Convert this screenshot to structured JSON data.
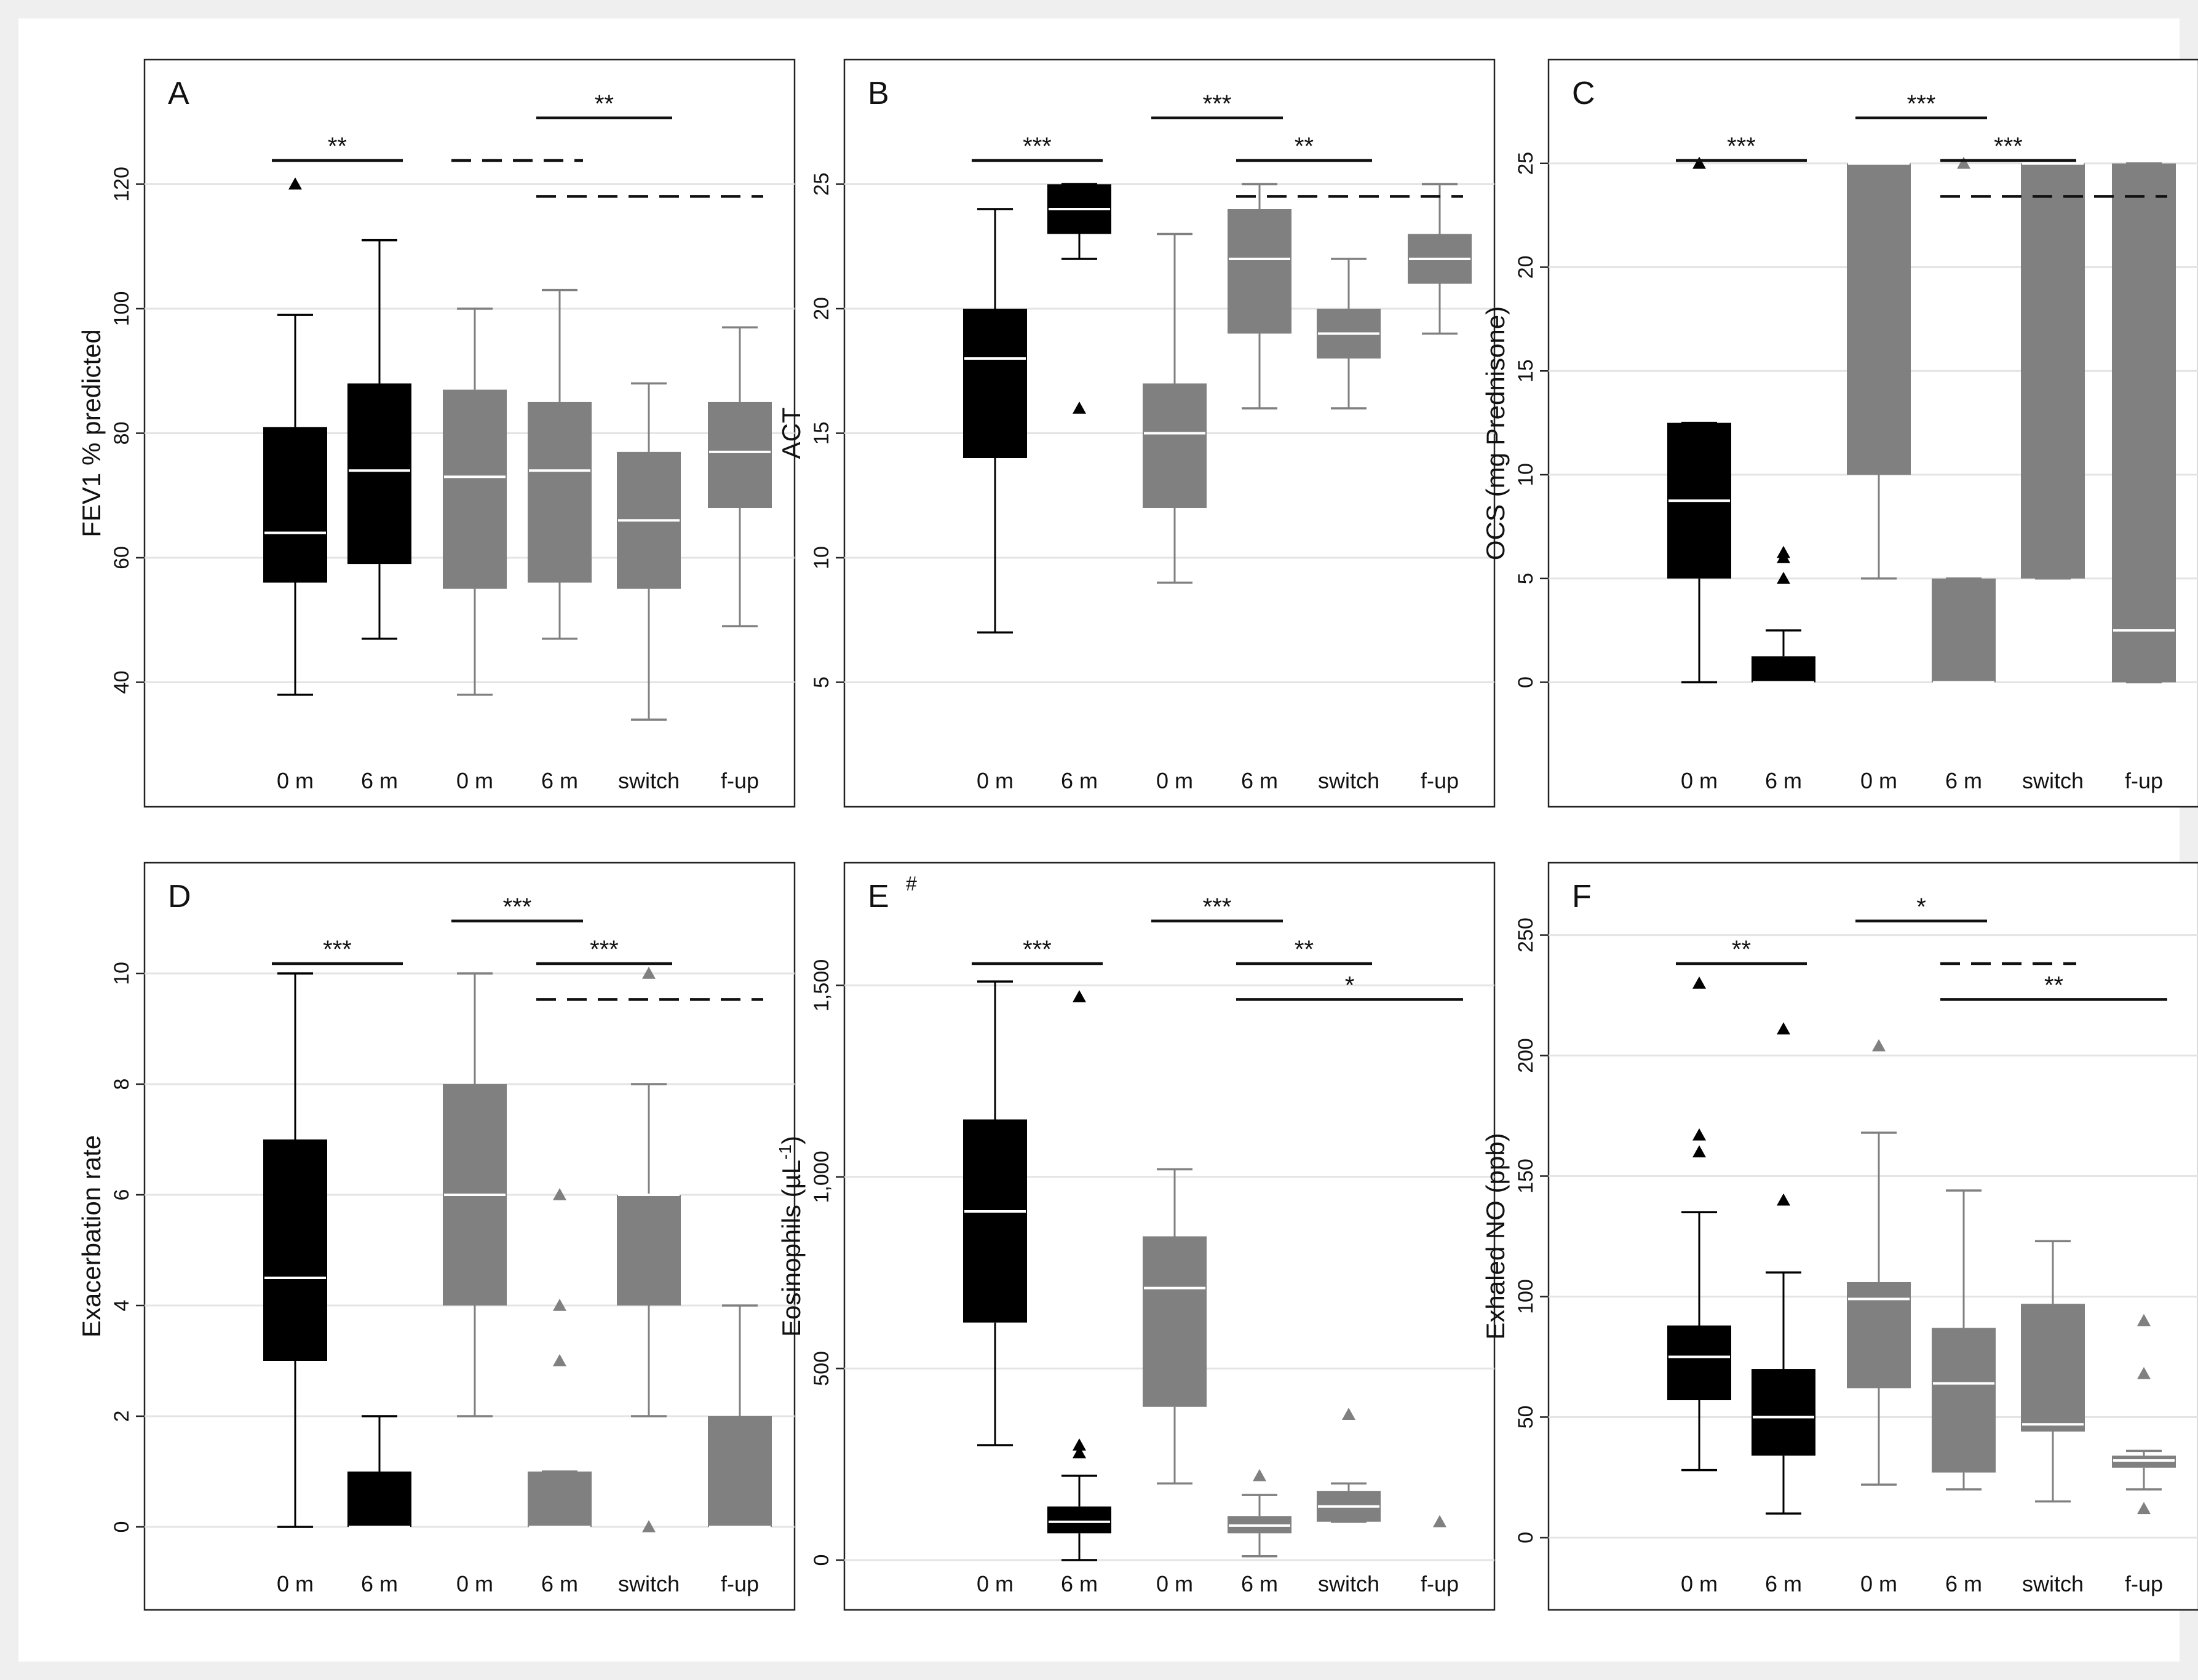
{
  "figure": {
    "background": "#efefef",
    "panel_background": "#ffffff"
  },
  "colors": {
    "black_group": "#000000",
    "gray_group": "#808080",
    "median_on_black": "#ffffff",
    "median_on_gray": "#ffffff"
  },
  "chart_data": [
    {
      "type": "box",
      "panel": "A",
      "ylabel": "FEV1 % predicted",
      "ylim": [
        20,
        140
      ],
      "yticks": [
        40,
        60,
        80,
        100,
        120
      ],
      "yticklabels": [
        "40",
        "60",
        "80",
        "100",
        "120"
      ],
      "categories": [
        "0 m",
        "6 m",
        "0 m",
        "6 m",
        "switch",
        "f-up"
      ],
      "groups": [
        "black",
        "black",
        "gray",
        "gray",
        "gray",
        "gray"
      ],
      "boxes": [
        {
          "whisker_low": 38,
          "q1": 56,
          "median": 64,
          "q3": 81,
          "whisker_high": 99,
          "outliers": [
            120
          ]
        },
        {
          "whisker_low": 47,
          "q1": 59,
          "median": 74,
          "q3": 88,
          "whisker_high": 111,
          "outliers": []
        },
        {
          "whisker_low": 38,
          "q1": 55,
          "median": 73,
          "q3": 87,
          "whisker_high": 100,
          "outliers": []
        },
        {
          "whisker_low": 47,
          "q1": 56,
          "median": 74,
          "q3": 85,
          "whisker_high": 103,
          "outliers": []
        },
        {
          "whisker_low": 34,
          "q1": 55,
          "median": 66,
          "q3": 77,
          "whisker_high": 88,
          "outliers": []
        },
        {
          "whisker_low": 49,
          "q1": 68,
          "median": 77,
          "q3": 85,
          "whisker_high": 97,
          "outliers": []
        }
      ],
      "significance": [
        {
          "label": "**",
          "from": 0,
          "to": 1,
          "style": "solid",
          "level": 1
        },
        {
          "label": "**",
          "from": 3,
          "to": 4,
          "style": "solid",
          "level": 0
        },
        {
          "label": "",
          "from": 2,
          "to": 3,
          "style": "dashed",
          "level": 1
        },
        {
          "label": "",
          "from": 3,
          "to": 5,
          "style": "dashed",
          "level": 2
        }
      ]
    },
    {
      "type": "box",
      "panel": "B",
      "ylabel": "ACT",
      "ylim": [
        0,
        30
      ],
      "yticks": [
        5,
        10,
        15,
        20,
        25
      ],
      "yticklabels": [
        "5",
        "10",
        "15",
        "20",
        "25"
      ],
      "categories": [
        "0 m",
        "6 m",
        "0 m",
        "6 m",
        "switch",
        "f-up"
      ],
      "groups": [
        "black",
        "black",
        "gray",
        "gray",
        "gray",
        "gray"
      ],
      "boxes": [
        {
          "whisker_low": 7,
          "q1": 14,
          "median": 18,
          "q3": 20,
          "whisker_high": 24,
          "outliers": []
        },
        {
          "whisker_low": 22,
          "q1": 23,
          "median": 24,
          "q3": 25,
          "whisker_high": 25,
          "outliers": [
            16
          ]
        },
        {
          "whisker_low": 9,
          "q1": 12,
          "median": 15,
          "q3": 17,
          "whisker_high": 23,
          "outliers": []
        },
        {
          "whisker_low": 16,
          "q1": 19,
          "median": 22,
          "q3": 24,
          "whisker_high": 25,
          "outliers": []
        },
        {
          "whisker_low": 16,
          "q1": 18,
          "median": 19,
          "q3": 20,
          "whisker_high": 22,
          "outliers": []
        },
        {
          "whisker_low": 19,
          "q1": 21,
          "median": 22,
          "q3": 23,
          "whisker_high": 25,
          "outliers": []
        }
      ],
      "significance": [
        {
          "label": "***",
          "from": 0,
          "to": 1,
          "style": "solid",
          "level": 1
        },
        {
          "label": "***",
          "from": 2,
          "to": 3,
          "style": "solid",
          "level": 0
        },
        {
          "label": "**",
          "from": 3,
          "to": 4,
          "style": "solid",
          "level": 1
        },
        {
          "label": "",
          "from": 3,
          "to": 5,
          "style": "dashed",
          "level": 2
        }
      ]
    },
    {
      "type": "box",
      "panel": "C",
      "ylabel": "OCS (mg Prednisone)",
      "ylim": [
        -6,
        30
      ],
      "yticks": [
        0,
        5,
        10,
        15,
        20,
        25
      ],
      "yticklabels": [
        "0",
        "5",
        "10",
        "15",
        "20",
        "25"
      ],
      "categories": [
        "0 m",
        "6 m",
        "0 m",
        "6 m",
        "switch",
        "f-up"
      ],
      "groups": [
        "black",
        "black",
        "gray",
        "gray",
        "gray",
        "gray"
      ],
      "boxes": [
        {
          "whisker_low": 0,
          "q1": 5,
          "median": 8.75,
          "q3": 12.5,
          "whisker_high": 12.5,
          "outliers": [
            25
          ]
        },
        {
          "whisker_low": 0,
          "q1": 0,
          "median": 0,
          "q3": 1.25,
          "whisker_high": 2.5,
          "outliers": [
            5,
            6,
            6.25
          ]
        },
        {
          "whisker_low": 5,
          "q1": 10,
          "median": 25,
          "q3": 25,
          "whisker_high": 25,
          "outliers": []
        },
        {
          "whisker_low": 0,
          "q1": 0,
          "median": 0,
          "q3": 5,
          "whisker_high": 5,
          "outliers": [
            25
          ]
        },
        {
          "whisker_low": 5,
          "q1": 5,
          "median": 25,
          "q3": 25,
          "whisker_high": 25,
          "outliers": []
        },
        {
          "whisker_low": 0,
          "q1": 0,
          "median": 2.5,
          "q3": 25,
          "whisker_high": 25,
          "outliers": []
        }
      ],
      "significance": [
        {
          "label": "***",
          "from": 0,
          "to": 1,
          "style": "solid",
          "level": 1
        },
        {
          "label": "***",
          "from": 2,
          "to": 3,
          "style": "solid",
          "level": 0
        },
        {
          "label": "***",
          "from": 3,
          "to": 4,
          "style": "solid",
          "level": 1
        },
        {
          "label": "",
          "from": 3,
          "to": 5,
          "style": "dashed",
          "level": 2
        }
      ]
    },
    {
      "type": "box",
      "panel": "D",
      "ylabel": "Exacerbation rate",
      "ylim": [
        -1.5,
        12
      ],
      "yticks": [
        0,
        2,
        4,
        6,
        8,
        10
      ],
      "yticklabels": [
        "0",
        "2",
        "4",
        "6",
        "8",
        "10"
      ],
      "categories": [
        "0 m",
        "6 m",
        "0 m",
        "6 m",
        "switch",
        "f-up"
      ],
      "groups": [
        "black",
        "black",
        "gray",
        "gray",
        "gray",
        "gray"
      ],
      "boxes": [
        {
          "whisker_low": 0,
          "q1": 3,
          "median": 4.5,
          "q3": 7,
          "whisker_high": 10,
          "outliers": []
        },
        {
          "whisker_low": 0,
          "q1": 0,
          "median": 0,
          "q3": 1,
          "whisker_high": 2,
          "outliers": []
        },
        {
          "whisker_low": 2,
          "q1": 4,
          "median": 6,
          "q3": 8,
          "whisker_high": 10,
          "outliers": []
        },
        {
          "whisker_low": 0,
          "q1": 0,
          "median": 0,
          "q3": 1,
          "whisker_high": 1,
          "outliers": [
            3,
            4,
            6
          ]
        },
        {
          "whisker_low": 2,
          "q1": 4,
          "median": 6,
          "q3": 6,
          "whisker_high": 8,
          "outliers": [
            0,
            10
          ]
        },
        {
          "whisker_low": 0,
          "q1": 0,
          "median": 0,
          "q3": 2,
          "whisker_high": 4,
          "outliers": []
        }
      ],
      "significance": [
        {
          "label": "***",
          "from": 0,
          "to": 1,
          "style": "solid",
          "level": 1
        },
        {
          "label": "***",
          "from": 2,
          "to": 3,
          "style": "solid",
          "level": 0
        },
        {
          "label": "***",
          "from": 3,
          "to": 4,
          "style": "solid",
          "level": 1
        },
        {
          "label": "",
          "from": 3,
          "to": 5,
          "style": "dashed",
          "level": 2
        }
      ]
    },
    {
      "type": "box",
      "panel": "E",
      "note": "#",
      "ylabel": "Eosinophils (µL",
      "ylabel_sup": "-1",
      "ylabel_close": ")",
      "ylim": [
        -130,
        1820
      ],
      "yticks": [
        0,
        500,
        1000,
        1500
      ],
      "yticklabels": [
        "0",
        "500",
        "1,000",
        "1,500"
      ],
      "categories": [
        "0 m",
        "6 m",
        "0 m",
        "6 m",
        "switch",
        "f-up"
      ],
      "groups": [
        "black",
        "black",
        "gray",
        "gray",
        "gray",
        "gray"
      ],
      "boxes": [
        {
          "whisker_low": 300,
          "q1": 620,
          "median": 910,
          "q3": 1150,
          "whisker_high": 1510,
          "outliers": []
        },
        {
          "whisker_low": 0,
          "q1": 70,
          "median": 100,
          "q3": 140,
          "whisker_high": 220,
          "outliers": [
            280,
            300,
            1470
          ]
        },
        {
          "whisker_low": 200,
          "q1": 400,
          "median": 710,
          "q3": 845,
          "whisker_high": 1020,
          "outliers": []
        },
        {
          "whisker_low": 10,
          "q1": 70,
          "median": 90,
          "q3": 115,
          "whisker_high": 170,
          "outliers": [
            220
          ]
        },
        {
          "whisker_low": 100,
          "q1": 100,
          "median": 140,
          "q3": 180,
          "whisker_high": 200,
          "outliers": [
            380
          ]
        },
        {
          "whisker_low": null,
          "q1": null,
          "median": null,
          "q3": null,
          "whisker_high": null,
          "outliers": [
            100
          ]
        }
      ],
      "significance": [
        {
          "label": "***",
          "from": 0,
          "to": 1,
          "style": "solid",
          "level": 1
        },
        {
          "label": "***",
          "from": 2,
          "to": 3,
          "style": "solid",
          "level": 0
        },
        {
          "label": "**",
          "from": 3,
          "to": 4,
          "style": "solid",
          "level": 1
        },
        {
          "label": "*",
          "from": 3,
          "to": 5,
          "style": "solid",
          "level": 2
        }
      ]
    },
    {
      "type": "box",
      "panel": "F",
      "ylabel": "Exhaled NO (ppb)",
      "ylim": [
        -30,
        280
      ],
      "yticks": [
        0,
        50,
        100,
        150,
        200,
        250
      ],
      "yticklabels": [
        "0",
        "50",
        "100",
        "150",
        "200",
        "250"
      ],
      "categories": [
        "0 m",
        "6 m",
        "0 m",
        "6 m",
        "switch",
        "f-up"
      ],
      "groups": [
        "black",
        "black",
        "gray",
        "gray",
        "gray",
        "gray"
      ],
      "boxes": [
        {
          "whisker_low": 28,
          "q1": 57,
          "median": 75,
          "q3": 88,
          "whisker_high": 135,
          "outliers": [
            160,
            167,
            230
          ]
        },
        {
          "whisker_low": 10,
          "q1": 34,
          "median": 50,
          "q3": 70,
          "whisker_high": 110,
          "outliers": [
            140,
            211
          ]
        },
        {
          "whisker_low": 22,
          "q1": 62,
          "median": 99,
          "q3": 106,
          "whisker_high": 168,
          "outliers": [
            204
          ]
        },
        {
          "whisker_low": 20,
          "q1": 27,
          "median": 64,
          "q3": 87,
          "whisker_high": 144,
          "outliers": []
        },
        {
          "whisker_low": 15,
          "q1": 44,
          "median": 47,
          "q3": 97,
          "whisker_high": 123,
          "outliers": []
        },
        {
          "whisker_low": 20,
          "q1": 29,
          "median": 32,
          "q3": 34,
          "whisker_high": 36,
          "outliers": [
            12,
            68,
            90
          ]
        }
      ],
      "significance": [
        {
          "label": "**",
          "from": 0,
          "to": 1,
          "style": "solid",
          "level": 1
        },
        {
          "label": "*",
          "from": 2,
          "to": 3,
          "style": "solid",
          "level": 0
        },
        {
          "label": "",
          "from": 3,
          "to": 4,
          "style": "dashed",
          "level": 1
        },
        {
          "label": "**",
          "from": 3,
          "to": 5,
          "style": "solid",
          "level": 2
        }
      ]
    }
  ]
}
